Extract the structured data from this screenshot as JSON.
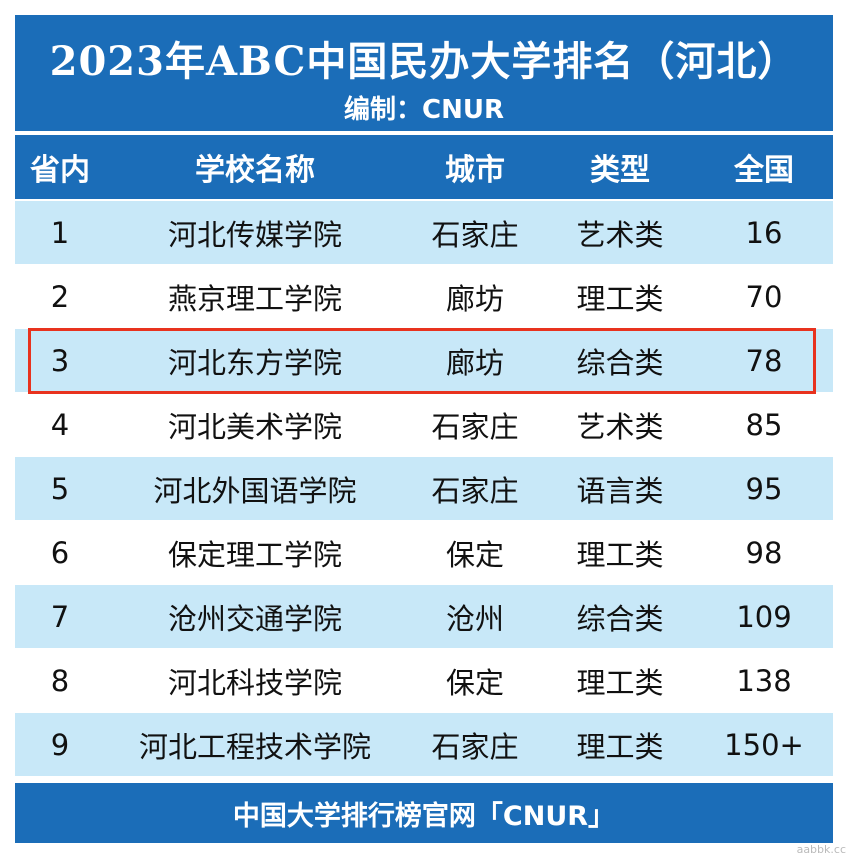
{
  "title": "2023年ABC中国民办大学排名（河北）",
  "subtitle": "编制：CNUR",
  "columns": [
    "省内",
    "学校名称",
    "城市",
    "类型",
    "全国"
  ],
  "rows": [
    {
      "rank": "1",
      "name": "河北传媒学院",
      "city": "石家庄",
      "type": "艺术类",
      "national": "16"
    },
    {
      "rank": "2",
      "name": "燕京理工学院",
      "city": "廊坊",
      "type": "理工类",
      "national": "70"
    },
    {
      "rank": "3",
      "name": "河北东方学院",
      "city": "廊坊",
      "type": "综合类",
      "national": "78"
    },
    {
      "rank": "4",
      "name": "河北美术学院",
      "city": "石家庄",
      "type": "艺术类",
      "national": "85"
    },
    {
      "rank": "5",
      "name": "河北外国语学院",
      "city": "石家庄",
      "type": "语言类",
      "national": "95"
    },
    {
      "rank": "6",
      "name": "保定理工学院",
      "city": "保定",
      "type": "理工类",
      "national": "98"
    },
    {
      "rank": "7",
      "name": "沧州交通学院",
      "city": "沧州",
      "type": "综合类",
      "national": "109"
    },
    {
      "rank": "8",
      "name": "河北科技学院",
      "city": "保定",
      "type": "理工类",
      "national": "138"
    },
    {
      "rank": "9",
      "name": "河北工程技术学院",
      "city": "石家庄",
      "type": "理工类",
      "national": "150+"
    }
  ],
  "highlighted_row": 3,
  "footer": "中国大学排行榜官网「CNUR」",
  "watermark": "aabbk.cc",
  "colors": {
    "header": "#1b6db8",
    "row_alt": "#c8e8f8",
    "highlight": "#e8321e"
  }
}
